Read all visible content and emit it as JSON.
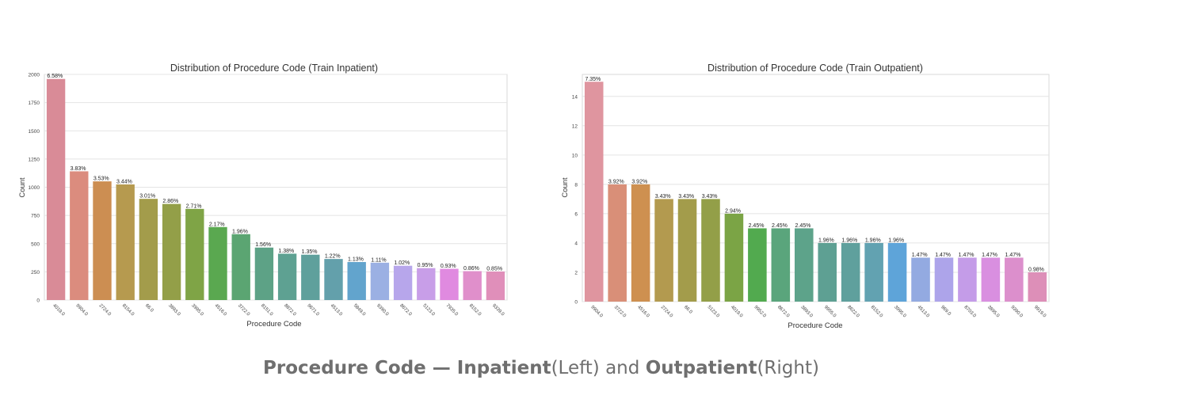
{
  "chart_data": [
    {
      "type": "bar",
      "title": "Distribution of Procedure Code (Train Inpatient)",
      "xlabel": "Procedure Code",
      "ylabel": "Count",
      "ylim": [
        0,
        2000
      ],
      "yticks": [
        "0",
        "250",
        "500",
        "750",
        "1000",
        "1250",
        "1500",
        "1750",
        "2000"
      ],
      "grid": true,
      "categories": [
        "4019.0",
        "9904.0",
        "2724.0",
        "8154.0",
        "66.0",
        "3893.0",
        "3995.0",
        "4516.0",
        "3722.0",
        "8151.0",
        "8872.0",
        "9671.0",
        "4513.0",
        "5849.0",
        "9390.0",
        "8672.0",
        "5123.0",
        "7935.0",
        "8152.0",
        "9339.0"
      ],
      "values": [
        1960,
        1141,
        1052,
        1025,
        897,
        852,
        808,
        647,
        584,
        465,
        411,
        402,
        364,
        337,
        331,
        304,
        283,
        277,
        256,
        253
      ],
      "data_labels": [
        "6.58%",
        "3.83%",
        "3.53%",
        "3.44%",
        "3.01%",
        "2.86%",
        "2.71%",
        "2.17%",
        "1.96%",
        "1.56%",
        "1.38%",
        "1.35%",
        "1.22%",
        "1.13%",
        "1.11%",
        "1.02%",
        "0.95%",
        "0.93%",
        "0.86%",
        "0.85%"
      ],
      "colors": [
        "#d98b97",
        "#db8c7e",
        "#cc8e52",
        "#b69a4f",
        "#a39c4b",
        "#939f48",
        "#7fa446",
        "#5aa850",
        "#5ba572",
        "#5da286",
        "#5ea192",
        "#5fa09c",
        "#63a0ab",
        "#62a4cd",
        "#9bb0e3",
        "#b7a6eb",
        "#c89ee8",
        "#e08ae0",
        "#e08fcb",
        "#e08fba"
      ]
    },
    {
      "type": "bar",
      "title": "Distribution of Procedure Code (Train Outpatient)",
      "xlabel": "Procedure Code",
      "ylabel": "Count",
      "ylim": [
        0,
        15.5
      ],
      "yticks": [
        "0",
        "2",
        "4",
        "6",
        "8",
        "10",
        "12",
        "14"
      ],
      "grid": true,
      "categories": [
        "9904.0",
        "3722.0",
        "4516.0",
        "2724.0",
        "66.0",
        "5123.0",
        "4019.0",
        "9952.0",
        "8672.0",
        "3893.0",
        "9955.0",
        "8622.0",
        "8152.0",
        "3995.0",
        "4513.0",
        "969.0",
        "8703.0",
        "3895.0",
        "9390.0",
        "9919.0"
      ],
      "values": [
        15,
        8,
        8,
        7,
        7,
        7,
        6,
        5,
        5,
        5,
        4,
        4,
        4,
        4,
        3,
        3,
        3,
        3,
        3,
        2
      ],
      "data_labels": [
        "7.35%",
        "3.92%",
        "3.92%",
        "3.43%",
        "3.43%",
        "3.43%",
        "2.94%",
        "2.45%",
        "2.45%",
        "2.45%",
        "1.96%",
        "1.96%",
        "1.96%",
        "1.96%",
        "1.47%",
        "1.47%",
        "1.47%",
        "1.47%",
        "1.47%",
        "0.98%"
      ],
      "colors": [
        "#df959f",
        "#d98f78",
        "#ce9050",
        "#b39a4f",
        "#a39c4b",
        "#939f48",
        "#7ba445",
        "#52aa4f",
        "#5aa57c",
        "#5da38a",
        "#5ea093",
        "#5fa09d",
        "#62a2b1",
        "#5ea4d9",
        "#93aae1",
        "#ada4ea",
        "#c49ce8",
        "#d98fe0",
        "#dc8fcc",
        "#dd8fb8"
      ]
    }
  ],
  "caption": {
    "part1_bold": "Procedure Code — Inpatient",
    "part2": "(Left) and ",
    "part3_bold": "Outpatient",
    "part4": "(Right)"
  }
}
